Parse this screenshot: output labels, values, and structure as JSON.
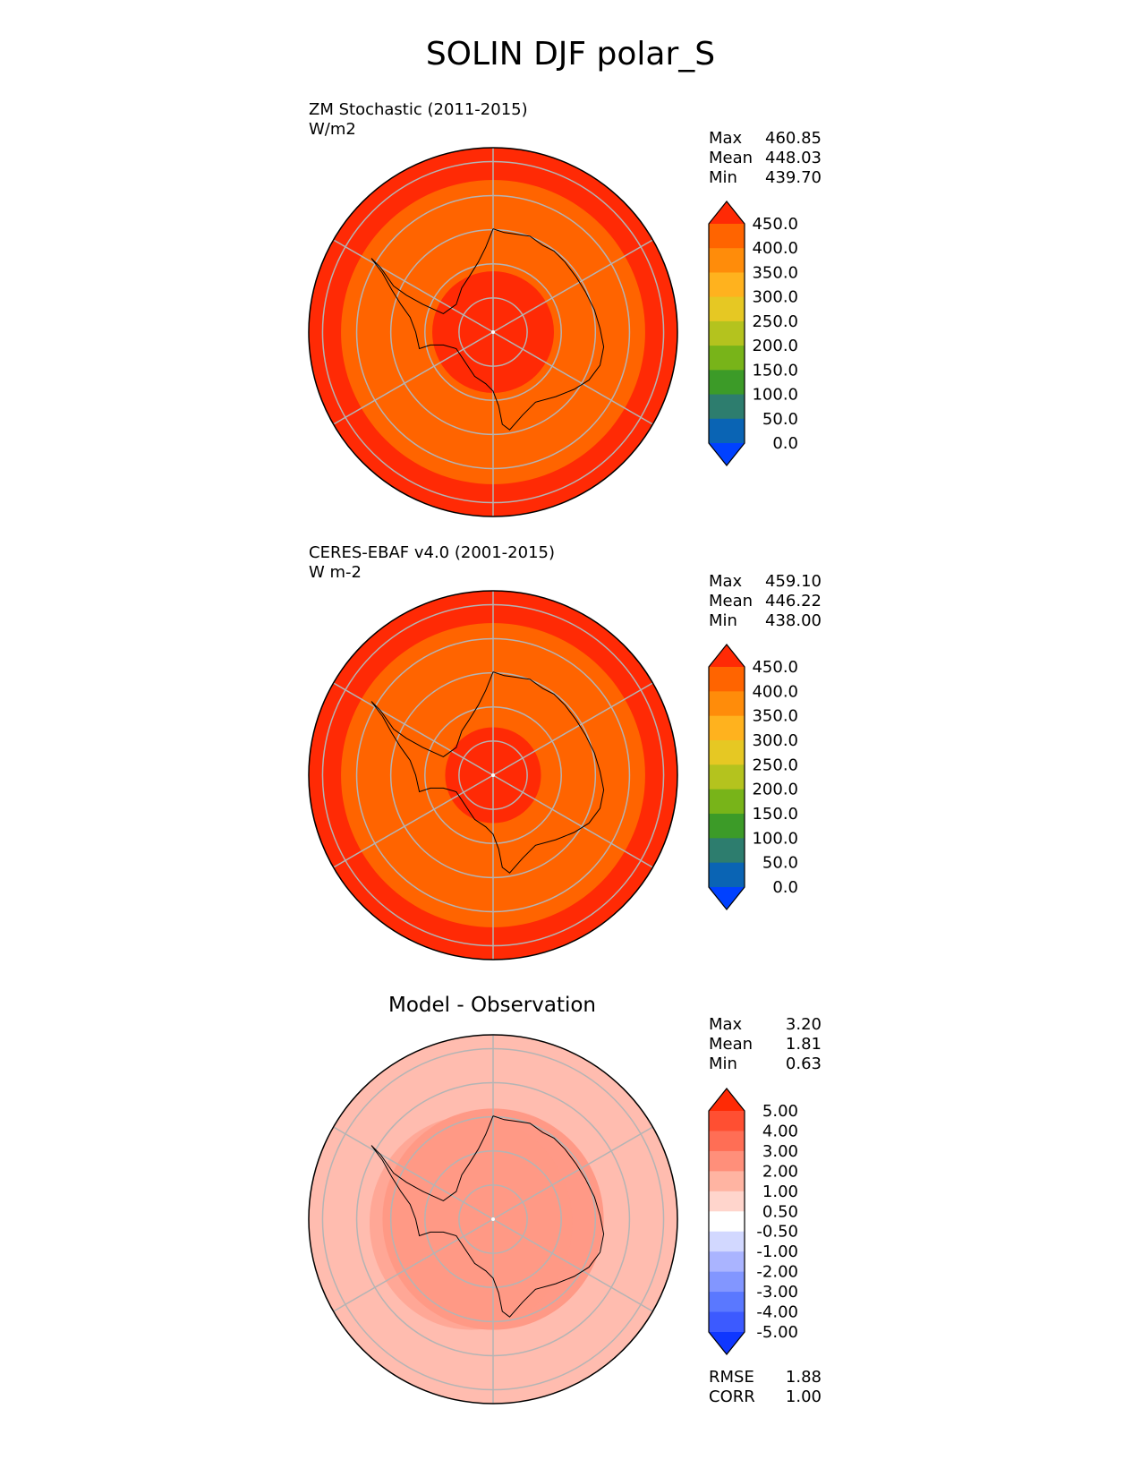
{
  "title": "SOLIN DJF polar_S",
  "panels": [
    {
      "id": "test",
      "title": "ZM Stochastic (2011-2015)",
      "units": "W/m2",
      "stats": [
        {
          "label": "Max",
          "value": "460.85"
        },
        {
          "label": "Mean",
          "value": "448.03"
        },
        {
          "label": "Min",
          "value": "439.70"
        }
      ]
    },
    {
      "id": "reference",
      "title": "CERES-EBAF v4.0 (2001-2015)",
      "units": "W m-2",
      "stats": [
        {
          "label": "Max",
          "value": "459.10"
        },
        {
          "label": "Mean",
          "value": "446.22"
        },
        {
          "label": "Min",
          "value": "438.00"
        }
      ]
    },
    {
      "id": "difference",
      "title": "Model - Observation",
      "stats": [
        {
          "label": "Max",
          "value": "3.20"
        },
        {
          "label": "Mean",
          "value": "1.81"
        },
        {
          "label": "Min",
          "value": "0.63"
        }
      ],
      "metrics": [
        {
          "label": "RMSE",
          "value": "1.88"
        },
        {
          "label": "CORR",
          "value": "1.00"
        }
      ]
    }
  ],
  "chart_data": [
    {
      "type": "heatmap",
      "projection": "south-polar-stereographic",
      "title": "ZM Stochastic (2011-2015)",
      "units": "W/m2",
      "colorbar": {
        "ticks": [
          "450.0",
          "400.0",
          "350.0",
          "300.0",
          "250.0",
          "200.0",
          "150.0",
          "100.0",
          "50.0",
          "0.0"
        ],
        "colors": [
          "#ff2a05",
          "#ff6400",
          "#ff8c0a",
          "#ffb21e",
          "#e6c823",
          "#b4c31e",
          "#78b419",
          "#3c9b28",
          "#2d7d6e",
          "#0a64b4",
          "#0041ff"
        ],
        "extend": "both"
      },
      "field": {
        "center_value_approx": 452,
        "mid_ring_value_approx": 440,
        "outer_ring_value_approx": 455
      }
    },
    {
      "type": "heatmap",
      "projection": "south-polar-stereographic",
      "title": "CERES-EBAF v4.0 (2001-2015)",
      "units": "W m-2",
      "colorbar": {
        "ticks": [
          "450.0",
          "400.0",
          "350.0",
          "300.0",
          "250.0",
          "200.0",
          "150.0",
          "100.0",
          "50.0",
          "0.0"
        ],
        "colors": [
          "#ff2a05",
          "#ff6400",
          "#ff8c0a",
          "#ffb21e",
          "#e6c823",
          "#b4c31e",
          "#78b419",
          "#3c9b28",
          "#2d7d6e",
          "#0a64b4",
          "#0041ff"
        ],
        "extend": "both"
      },
      "field": {
        "center_value_approx": 451,
        "mid_ring_value_approx": 440,
        "outer_ring_value_approx": 455
      }
    },
    {
      "type": "heatmap",
      "projection": "south-polar-stereographic",
      "title": "Model - Observation",
      "colorbar": {
        "ticks": [
          "5.00",
          "4.00",
          "3.00",
          "2.00",
          "1.00",
          "0.50",
          "-0.50",
          "-1.00",
          "-2.00",
          "-3.00",
          "-4.00",
          "-5.00"
        ],
        "colors": [
          "#ff2a05",
          "#ff4f32",
          "#ff6e55",
          "#ff8f7a",
          "#ffb4a2",
          "#ffd5cc",
          "#ffffff",
          "#d2d8ff",
          "#aab4ff",
          "#8296ff",
          "#5a78ff",
          "#3c5aff",
          "#0f37ff"
        ],
        "extend": "both"
      },
      "field": {
        "inner_region_value_approx": 2.5,
        "outer_region_value_approx": 1.5
      }
    }
  ]
}
